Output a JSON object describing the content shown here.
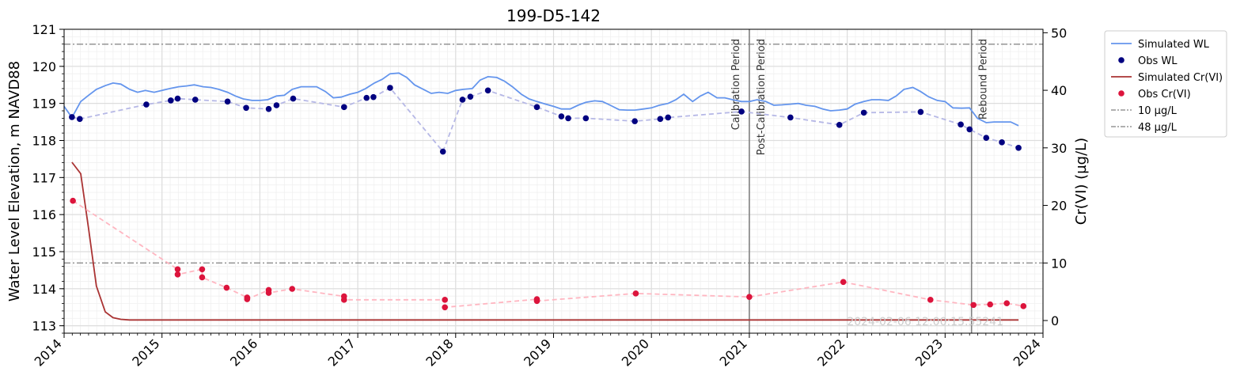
{
  "chart_data": {
    "type": "line",
    "title": "199-D5-142",
    "xlabel": "",
    "ylabel_left": "Water Level Elevation, m NAVD88",
    "ylabel_right": "Cr(VI) (µg/L)",
    "xlim": [
      2014,
      2024
    ],
    "ylim_left": [
      112.8,
      121
    ],
    "ylim_right": [
      -2.2,
      50.6
    ],
    "x_ticks": [
      "2014",
      "2015",
      "2016",
      "2017",
      "2018",
      "2019",
      "2020",
      "2021",
      "2022",
      "2023",
      "2024"
    ],
    "y_left_ticks": [
      "113",
      "114",
      "115",
      "116",
      "117",
      "118",
      "119",
      "120",
      "121"
    ],
    "y_right_ticks": [
      "0",
      "10",
      "20",
      "30",
      "40",
      "50"
    ],
    "grid": true,
    "legend_position": "outside-right",
    "watermark": "2024-02-06 12:00:15.55241",
    "vertical_lines": [
      {
        "x": 2021.0,
        "label": "Calibration Period",
        "label_side": "left"
      },
      {
        "x": 2021.0,
        "label": "Post-Calibration Period",
        "label_side": "right"
      },
      {
        "x": 2023.27,
        "label": "Rebound Period",
        "label_side": "right"
      }
    ],
    "series": [
      {
        "name": "Simulated WL",
        "axis": "left",
        "kind": "line",
        "color": "#6495ED",
        "x": [
          2014.0,
          2014.08,
          2014.17,
          2014.25,
          2014.33,
          2014.42,
          2014.5,
          2014.58,
          2014.67,
          2014.75,
          2014.83,
          2014.92,
          2015.0,
          2015.08,
          2015.17,
          2015.25,
          2015.33,
          2015.42,
          2015.5,
          2015.58,
          2015.67,
          2015.75,
          2015.83,
          2015.92,
          2016.0,
          2016.08,
          2016.17,
          2016.25,
          2016.33,
          2016.42,
          2016.5,
          2016.58,
          2016.67,
          2016.75,
          2016.83,
          2016.92,
          2017.0,
          2017.08,
          2017.17,
          2017.25,
          2017.33,
          2017.42,
          2017.5,
          2017.58,
          2017.67,
          2017.75,
          2017.83,
          2017.92,
          2018.0,
          2018.08,
          2018.17,
          2018.25,
          2018.33,
          2018.42,
          2018.5,
          2018.58,
          2018.67,
          2018.75,
          2018.83,
          2018.92,
          2019.0,
          2019.08,
          2019.17,
          2019.25,
          2019.33,
          2019.42,
          2019.5,
          2019.58,
          2019.67,
          2019.75,
          2019.83,
          2019.92,
          2020.0,
          2020.08,
          2020.17,
          2020.25,
          2020.33,
          2020.42,
          2020.5,
          2020.58,
          2020.67,
          2020.75,
          2020.83,
          2020.92,
          2021.0,
          2021.08,
          2021.17,
          2021.25,
          2021.33,
          2021.42,
          2021.5,
          2021.58,
          2021.67,
          2021.75,
          2021.83,
          2021.92,
          2022.0,
          2022.08,
          2022.17,
          2022.25,
          2022.33,
          2022.42,
          2022.5,
          2022.58,
          2022.67,
          2022.75,
          2022.83,
          2022.92,
          2023.0,
          2023.08,
          2023.17,
          2023.25,
          2023.33,
          2023.42,
          2023.5,
          2023.58,
          2023.67,
          2023.75
        ],
        "y": [
          118.92,
          118.62,
          119.05,
          119.22,
          119.38,
          119.48,
          119.55,
          119.52,
          119.38,
          119.3,
          119.35,
          119.3,
          119.35,
          119.4,
          119.45,
          119.47,
          119.5,
          119.45,
          119.43,
          119.38,
          119.3,
          119.2,
          119.12,
          119.08,
          119.08,
          119.1,
          119.2,
          119.22,
          119.38,
          119.45,
          119.45,
          119.45,
          119.32,
          119.15,
          119.17,
          119.25,
          119.3,
          119.4,
          119.55,
          119.65,
          119.8,
          119.82,
          119.7,
          119.5,
          119.38,
          119.27,
          119.3,
          119.27,
          119.35,
          119.38,
          119.4,
          119.63,
          119.72,
          119.7,
          119.6,
          119.45,
          119.25,
          119.12,
          119.05,
          118.98,
          118.92,
          118.85,
          118.85,
          118.95,
          119.03,
          119.07,
          119.05,
          118.95,
          118.83,
          118.82,
          118.82,
          118.85,
          118.88,
          118.95,
          119.0,
          119.1,
          119.25,
          119.05,
          119.2,
          119.3,
          119.15,
          119.15,
          119.1,
          119.05,
          119.05,
          119.1,
          119.05,
          118.95,
          118.96,
          118.98,
          119.0,
          118.95,
          118.92,
          118.85,
          118.8,
          118.82,
          118.85,
          118.98,
          119.05,
          119.1,
          119.1,
          119.08,
          119.2,
          119.38,
          119.43,
          119.32,
          119.18,
          119.08,
          119.05,
          118.88,
          118.87,
          118.88,
          118.6,
          118.48,
          118.5,
          118.5,
          118.5,
          118.4
        ]
      },
      {
        "name": "Obs WL",
        "axis": "left",
        "kind": "scatter",
        "connect": "dashed",
        "color": "#000080",
        "line_color": "#B6B8E6",
        "x": [
          2014.08,
          2014.16,
          2014.84,
          2015.09,
          2015.16,
          2015.34,
          2015.67,
          2015.86,
          2016.09,
          2016.17,
          2016.34,
          2016.86,
          2017.09,
          2017.16,
          2017.33,
          2017.87,
          2018.07,
          2018.15,
          2018.33,
          2018.83,
          2019.08,
          2019.15,
          2019.33,
          2019.83,
          2020.09,
          2020.17,
          2020.92,
          2021.42,
          2021.92,
          2022.17,
          2022.75,
          2023.16,
          2023.25,
          2023.42,
          2023.58,
          2023.75
        ],
        "y": [
          118.63,
          118.58,
          118.97,
          119.08,
          119.13,
          119.1,
          119.05,
          118.88,
          118.85,
          118.95,
          119.13,
          118.9,
          119.15,
          119.17,
          119.42,
          117.7,
          119.1,
          119.18,
          119.35,
          118.9,
          118.65,
          118.6,
          118.6,
          118.52,
          118.58,
          118.62,
          118.78,
          118.62,
          118.42,
          118.75,
          118.77,
          118.43,
          118.3,
          118.07,
          117.95,
          117.8
        ]
      },
      {
        "name": "Simulated Cr(VI)",
        "axis": "right",
        "kind": "line",
        "color": "#AA3333",
        "x": [
          2014.08,
          2014.17,
          2014.25,
          2014.33,
          2014.42,
          2014.5,
          2014.58,
          2014.67,
          2014.75,
          2015.0,
          2016.0,
          2017.0,
          2018.0,
          2019.0,
          2020.0,
          2021.0,
          2022.0,
          2023.0,
          2023.75
        ],
        "y": [
          27.5,
          25.5,
          16,
          6,
          1.5,
          0.5,
          0.2,
          0.1,
          0.1,
          0.1,
          0.1,
          0.1,
          0.1,
          0.1,
          0.1,
          0.1,
          0.1,
          0.1,
          0.1
        ]
      },
      {
        "name": "Obs Cr(VI)",
        "axis": "right",
        "kind": "scatter",
        "connect": "dashed",
        "color": "#DC143C",
        "line_color": "#FFB6C1",
        "x": [
          2014.09,
          2015.16,
          2015.16,
          2015.41,
          2015.41,
          2015.66,
          2015.87,
          2015.87,
          2016.09,
          2016.09,
          2016.33,
          2016.86,
          2016.86,
          2017.89,
          2017.89,
          2018.83,
          2018.83,
          2019.84,
          2021.0,
          2021.96,
          2022.85,
          2023.29,
          2023.46,
          2023.63,
          2023.8
        ],
        "y": [
          20.8,
          8.9,
          8.0,
          8.9,
          7.5,
          5.7,
          4.0,
          3.7,
          5.3,
          4.8,
          5.5,
          4.2,
          3.6,
          3.6,
          2.3,
          3.7,
          3.4,
          4.7,
          4.1,
          6.7,
          3.6,
          2.7,
          2.8,
          3.0,
          2.5
        ]
      },
      {
        "name": "10 µg/L",
        "axis": "right",
        "kind": "hline",
        "value": 10,
        "color": "#808080",
        "style": "dashdot"
      },
      {
        "name": "48 µg/L",
        "axis": "right",
        "kind": "hline",
        "value": 48,
        "color": "#808080",
        "style": "dashdot"
      }
    ]
  }
}
